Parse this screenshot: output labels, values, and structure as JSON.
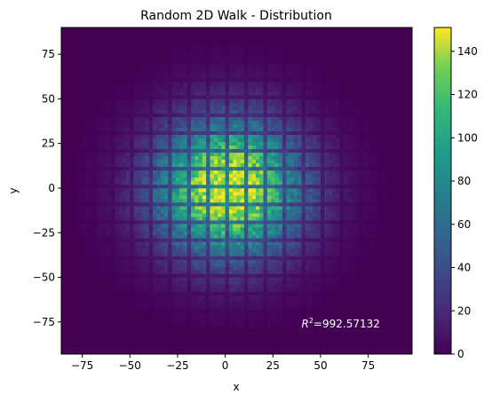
{
  "chart_data": {
    "type": "heatmap",
    "title": "Random 2D Walk - Distribution",
    "xlabel": "x",
    "ylabel": "y",
    "xlim": [
      -86,
      98
    ],
    "ylim": [
      -93,
      90
    ],
    "x_ticks": [
      -75,
      -50,
      -25,
      0,
      25,
      50,
      75
    ],
    "x_tick_labels": [
      "−75",
      "−50",
      "−25",
      "0",
      "25",
      "50",
      "75"
    ],
    "y_ticks": [
      -75,
      -50,
      -25,
      0,
      25,
      50,
      75
    ],
    "y_tick_labels": [
      "−75",
      "−50",
      "−25",
      "0",
      "25",
      "50",
      "75"
    ],
    "colormap": "viridis",
    "colorbar_range": [
      0,
      151
    ],
    "colorbar_ticks": [
      0,
      20,
      40,
      60,
      80,
      100,
      120,
      140
    ],
    "colorbar_tick_labels": [
      "0",
      "20",
      "40",
      "60",
      "80",
      "100",
      "120",
      "140"
    ],
    "distribution_center": [
      2,
      0
    ],
    "peak_count": 150,
    "sigma": 26,
    "bin_size": 2,
    "grid_line_spacing": 10,
    "grid": false,
    "annotation": {
      "prefix": "R",
      "superscript": "2",
      "value_text": "=992.57132",
      "x": 40,
      "y": -78
    }
  }
}
